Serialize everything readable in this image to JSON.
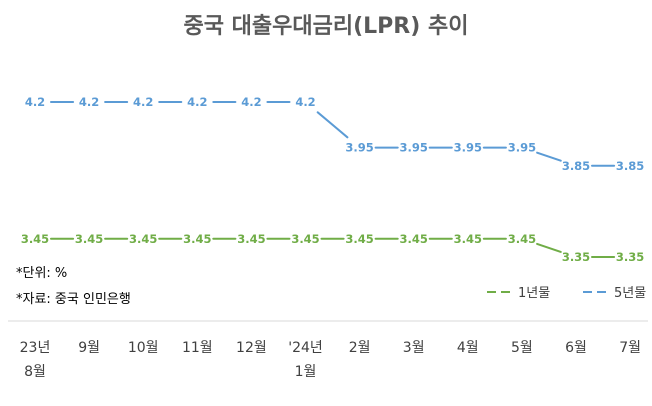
{
  "chart_data": {
    "type": "line",
    "title": "중국 대출우대금리(LPR) 추이",
    "categories": [
      "23년 8월",
      "9월",
      "10월",
      "11월",
      "12월",
      "'24년 1월",
      "2월",
      "3월",
      "4월",
      "5월",
      "6월",
      "7월"
    ],
    "category_lines": [
      [
        "23년",
        "8월"
      ],
      [
        "9월"
      ],
      [
        "10월"
      ],
      [
        "11월"
      ],
      [
        "12월"
      ],
      [
        "'24년",
        "1월"
      ],
      [
        "2월"
      ],
      [
        "3월"
      ],
      [
        "4월"
      ],
      [
        "5월"
      ],
      [
        "6월"
      ],
      [
        "7월"
      ]
    ],
    "series": [
      {
        "name": "1년물",
        "color": "#70ad47",
        "values": [
          3.45,
          3.45,
          3.45,
          3.45,
          3.45,
          3.45,
          3.45,
          3.45,
          3.45,
          3.45,
          3.35,
          3.35
        ],
        "labels": [
          "3.45",
          "3.45",
          "3.45",
          "3.45",
          "3.45",
          "3.45",
          "3.45",
          "3.45",
          "3.45",
          "3.45",
          "3.35",
          "3.35"
        ]
      },
      {
        "name": "5년물",
        "color": "#5b9bd5",
        "values": [
          4.2,
          4.2,
          4.2,
          4.2,
          4.2,
          4.2,
          3.95,
          3.95,
          3.95,
          3.95,
          3.85,
          3.85
        ],
        "labels": [
          "4.2",
          "4.2",
          "4.2",
          "4.2",
          "4.2",
          "4.2",
          "3.95",
          "3.95",
          "3.95",
          "3.95",
          "3.85",
          "3.85"
        ]
      }
    ],
    "legend_position": "bottom-right",
    "grid": false
  },
  "notes": [
    "*단위: %",
    "*자료: 중국 인민은행"
  ]
}
